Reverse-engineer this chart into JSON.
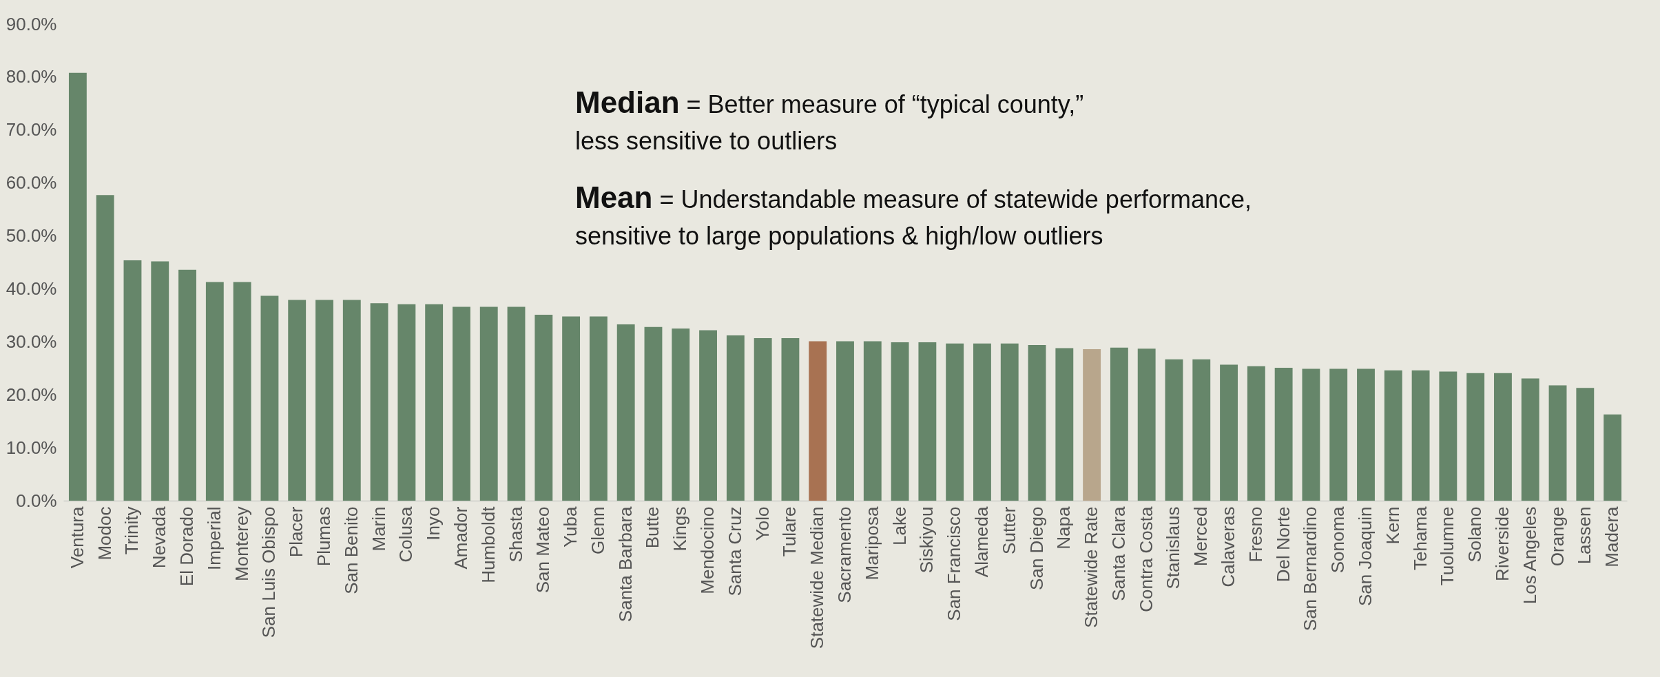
{
  "chart_data": {
    "type": "bar",
    "categories": [
      "Ventura",
      "Modoc",
      "Trinity",
      "Nevada",
      "El Dorado",
      "Imperial",
      "Monterey",
      "San Luis Obispo",
      "Placer",
      "Plumas",
      "San Benito",
      "Marin",
      "Colusa",
      "Inyo",
      "Amador",
      "Humboldt",
      "Shasta",
      "San Mateo",
      "Yuba",
      "Glenn",
      "Santa Barbara",
      "Butte",
      "Kings",
      "Mendocino",
      "Santa Cruz",
      "Yolo",
      "Tulare",
      "Statewide Median",
      "Sacramento",
      "Mariposa",
      "Lake",
      "Siskiyou",
      "San Francisco",
      "Alameda",
      "Sutter",
      "San Diego",
      "Napa",
      "Statewide Rate",
      "Santa Clara",
      "Contra Costa",
      "Stanislaus",
      "Merced",
      "Calaveras",
      "Fresno",
      "Del Norte",
      "San Bernardino",
      "Sonoma",
      "San Joaquin",
      "Kern",
      "Tehama",
      "Tuolumne",
      "Solano",
      "Riverside",
      "Los Angeles",
      "Orange",
      "Lassen",
      "Madera"
    ],
    "values": [
      80.8,
      57.7,
      45.4,
      45.2,
      43.6,
      41.3,
      41.3,
      38.7,
      37.9,
      37.9,
      37.9,
      37.3,
      37.1,
      37.1,
      36.6,
      36.6,
      36.6,
      35.1,
      34.8,
      34.8,
      33.3,
      32.8,
      32.5,
      32.2,
      31.2,
      30.7,
      30.7,
      30.1,
      30.1,
      30.1,
      29.9,
      29.9,
      29.7,
      29.7,
      29.7,
      29.4,
      28.8,
      28.6,
      28.9,
      28.7,
      26.7,
      26.7,
      25.7,
      25.4,
      25.1,
      24.9,
      24.9,
      24.9,
      24.6,
      24.6,
      24.4,
      24.1,
      24.1,
      23.1,
      21.8,
      21.3,
      16.3
    ],
    "colors": [
      "#66866a",
      "#66866a",
      "#66866a",
      "#66866a",
      "#66866a",
      "#66866a",
      "#66866a",
      "#66866a",
      "#66866a",
      "#66866a",
      "#66866a",
      "#66866a",
      "#66866a",
      "#66866a",
      "#66866a",
      "#66866a",
      "#66866a",
      "#66866a",
      "#66866a",
      "#66866a",
      "#66866a",
      "#66866a",
      "#66866a",
      "#66866a",
      "#66866a",
      "#66866a",
      "#66866a",
      "#a87252",
      "#66866a",
      "#66866a",
      "#66866a",
      "#66866a",
      "#66866a",
      "#66866a",
      "#66866a",
      "#66866a",
      "#66866a",
      "#b8a68c",
      "#66866a",
      "#66866a",
      "#66866a",
      "#66866a",
      "#66866a",
      "#66866a",
      "#66866a",
      "#66866a",
      "#66866a",
      "#66866a",
      "#66866a",
      "#66866a",
      "#66866a",
      "#66866a",
      "#66866a",
      "#66866a",
      "#66866a",
      "#66866a",
      "#66866a"
    ],
    "ylim": [
      0,
      90
    ],
    "yticks": [
      {
        "value": 0,
        "label": "0.0%"
      },
      {
        "value": 10,
        "label": "10.0%"
      },
      {
        "value": 20,
        "label": "20.0%"
      },
      {
        "value": 30,
        "label": "30.0%"
      },
      {
        "value": 40,
        "label": "40.0%"
      },
      {
        "value": 50,
        "label": "50.0%"
      },
      {
        "value": 60,
        "label": "60.0%"
      },
      {
        "value": 70,
        "label": "70.0%"
      },
      {
        "value": 80,
        "label": "80.0%"
      },
      {
        "value": 90,
        "label": "90.0%"
      }
    ],
    "grid": false,
    "annotations": [
      "Median = Better measure of “typical county,”\nless sensitive to outliers",
      "Mean = Understandable measure of statewide performance,\nsensitive to large populations & high/low outliers"
    ]
  }
}
